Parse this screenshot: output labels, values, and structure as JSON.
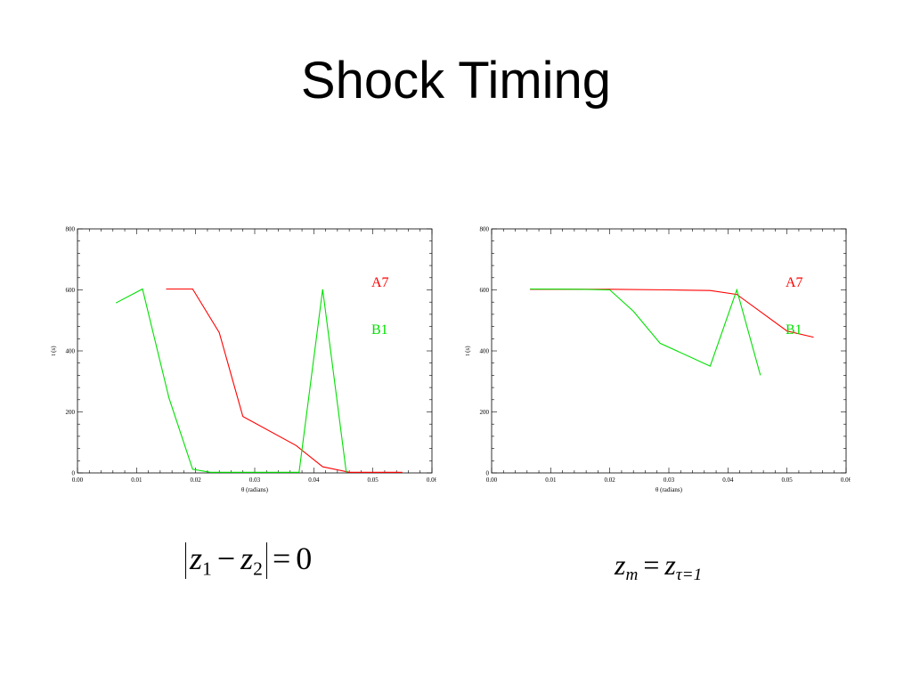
{
  "title": "Shock Timing",
  "chart_data": [
    {
      "type": "line",
      "xlabel": "θ (radians)",
      "ylabel": "t (s)",
      "xlim": [
        0,
        0.06
      ],
      "ylim": [
        0,
        800
      ],
      "xticks": [
        "0.00",
        "0.01",
        "0.02",
        "0.03",
        "0.04",
        "0.05",
        "0.06"
      ],
      "yticks": [
        "0",
        "200",
        "400",
        "600",
        "800"
      ],
      "grid": false,
      "legend_position": "right",
      "series": [
        {
          "name": "A7",
          "color": "#ff0000",
          "x": [
            0.015,
            0.0195,
            0.024,
            0.028,
            0.037,
            0.0415,
            0.046,
            0.055
          ],
          "y": [
            603,
            603,
            460,
            185,
            90,
            20,
            2,
            2
          ]
        },
        {
          "name": "B1",
          "color": "#00e000",
          "x": [
            0.0065,
            0.011,
            0.0155,
            0.0195,
            0.0225,
            0.0285,
            0.0375,
            0.0415,
            0.0455
          ],
          "y": [
            557,
            603,
            245,
            12,
            2,
            2,
            2,
            602,
            2
          ]
        }
      ]
    },
    {
      "type": "line",
      "xlabel": "θ (radians)",
      "ylabel": "t (s)",
      "xlim": [
        0,
        0.06
      ],
      "ylim": [
        0,
        800
      ],
      "xticks": [
        "0.00",
        "0.01",
        "0.02",
        "0.03",
        "0.04",
        "0.05",
        "0.06"
      ],
      "yticks": [
        "0",
        "200",
        "400",
        "600",
        "800"
      ],
      "grid": false,
      "legend_position": "right",
      "series": [
        {
          "name": "A7",
          "color": "#ff0000",
          "x": [
            0.0065,
            0.02,
            0.03,
            0.037,
            0.0415,
            0.05,
            0.0545
          ],
          "y": [
            602,
            602,
            600,
            598,
            585,
            465,
            445
          ]
        },
        {
          "name": "B1",
          "color": "#00e000",
          "x": [
            0.0065,
            0.015,
            0.02,
            0.024,
            0.0285,
            0.037,
            0.0415,
            0.0455
          ],
          "y": [
            603,
            602,
            600,
            530,
            425,
            350,
            600,
            320
          ]
        }
      ]
    }
  ],
  "equations": {
    "left": {
      "z": "z",
      "sub1": "1",
      "minus": "−",
      "sub2": "2",
      "equals": "=",
      "rhs": "0"
    },
    "right": {
      "z": "z",
      "sub_m": "m",
      "equals": "=",
      "sub_tau": "τ=1"
    }
  }
}
